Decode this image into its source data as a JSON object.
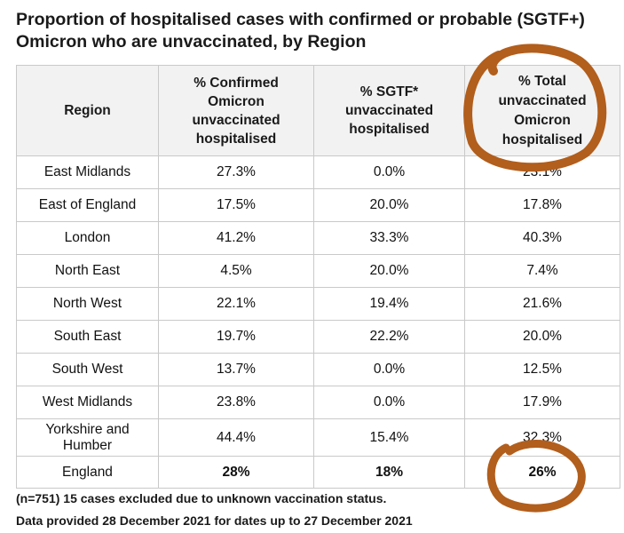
{
  "title": {
    "line1": "Proportion of hospitalised cases with confirmed or probable (SGTF+)",
    "line2": "Omicron who are unvaccinated, by Region"
  },
  "table": {
    "headers": {
      "region": "Region",
      "confirmed": [
        "% Confirmed",
        "Omicron",
        "unvaccinated",
        "hospitalised"
      ],
      "sgtf": [
        "% SGTF*",
        "unvaccinated",
        "hospitalised"
      ],
      "total": [
        "% Total",
        "unvaccinated",
        "Omicron",
        "hospitalised"
      ]
    },
    "rows": [
      {
        "region": "East Midlands",
        "confirmed": "27.3%",
        "sgtf": "0.0%",
        "total": "23.1%"
      },
      {
        "region": "East of England",
        "confirmed": "17.5%",
        "sgtf": "20.0%",
        "total": "17.8%"
      },
      {
        "region": "London",
        "confirmed": "41.2%",
        "sgtf": "33.3%",
        "total": "40.3%"
      },
      {
        "region": "North East",
        "confirmed": "4.5%",
        "sgtf": "20.0%",
        "total": "7.4%"
      },
      {
        "region": "North West",
        "confirmed": "22.1%",
        "sgtf": "19.4%",
        "total": "21.6%"
      },
      {
        "region": "South East",
        "confirmed": "19.7%",
        "sgtf": "22.2%",
        "total": "20.0%"
      },
      {
        "region": "South West",
        "confirmed": "13.7%",
        "sgtf": "0.0%",
        "total": "12.5%"
      },
      {
        "region": "West Midlands",
        "confirmed": "23.8%",
        "sgtf": "0.0%",
        "total": "17.9%"
      },
      {
        "region": [
          "Yorkshire and",
          "Humber"
        ],
        "confirmed": "44.4%",
        "sgtf": "15.4%",
        "total": "32.3%"
      }
    ],
    "england": {
      "region": "England",
      "confirmed": "28%",
      "sgtf": "18%",
      "total": "26%"
    }
  },
  "footnotes": {
    "line1": "(n=751) 15 cases excluded due to unknown vaccination status.",
    "line2": "Data provided 28 December 2021 for dates up to 27 December 2021"
  },
  "annotation_color": "#b25e1c"
}
